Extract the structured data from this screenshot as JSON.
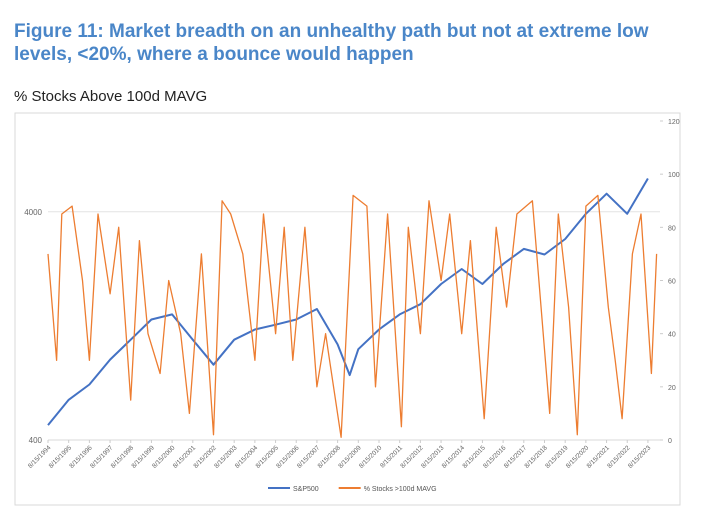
{
  "header": {
    "title": "Figure 11: Market breadth on an unhealthy path but not at extreme low levels, <20%, where a bounce would happen",
    "subtitle": "% Stocks Above 100d MAVG"
  },
  "chart_data": {
    "type": "line",
    "xlim": [
      "8/15/1994",
      "3/15/2024"
    ],
    "xticks": [
      "8/15/1994",
      "8/15/1995",
      "8/15/1996",
      "8/15/1997",
      "8/15/1998",
      "8/15/1999",
      "8/15/2000",
      "8/15/2001",
      "8/15/2002",
      "8/15/2003",
      "8/15/2004",
      "8/15/2005",
      "8/15/2006",
      "8/15/2007",
      "8/15/2008",
      "8/15/2009",
      "8/15/2010",
      "8/15/2011",
      "8/15/2012",
      "8/15/2013",
      "8/15/2014",
      "8/15/2015",
      "8/15/2016",
      "8/15/2017",
      "8/15/2018",
      "8/15/2019",
      "8/15/2020",
      "8/15/2021",
      "8/15/2022",
      "8/15/2023"
    ],
    "ylim": [
      400,
      10000
    ],
    "yscale": "log",
    "yticks": [
      400,
      4000
    ],
    "grid": true,
    "y2lim": [
      0,
      120
    ],
    "y2ticks": [
      0,
      20,
      40,
      60,
      80,
      100,
      120
    ],
    "legend": "bottom",
    "series": [
      {
        "name": "S&P500",
        "color": "#4472c4",
        "axis": "y",
        "x": [
          "8/15/1994",
          "8/15/1995",
          "8/15/1996",
          "8/15/1997",
          "8/15/1998",
          "8/15/1999",
          "8/15/2000",
          "8/15/2001",
          "8/15/2002",
          "8/15/2003",
          "8/15/2004",
          "8/15/2005",
          "8/15/2006",
          "8/15/2007",
          "8/15/2008",
          "3/15/2009",
          "8/15/2009",
          "8/15/2010",
          "8/15/2011",
          "8/15/2012",
          "8/15/2013",
          "8/15/2014",
          "8/15/2015",
          "8/15/2016",
          "8/15/2017",
          "8/15/2018",
          "8/15/2019",
          "8/15/2020",
          "8/15/2021",
          "8/15/2022",
          "8/15/2023"
        ],
        "values": [
          465,
          600,
          700,
          900,
          1100,
          1350,
          1420,
          1100,
          855,
          1100,
          1220,
          1280,
          1350,
          1500,
          1050,
          770,
          1000,
          1220,
          1420,
          1575,
          1930,
          2245,
          1930,
          2360,
          2750,
          2600,
          3040,
          3920,
          4800,
          3920,
          5600
        ]
      },
      {
        "name": "% Stocks >100d MAVG",
        "color": "#ed7d31",
        "axis": "y2",
        "x": [
          "8/15/1994",
          "1/15/1995",
          "4/15/1995",
          "10/15/1995",
          "4/15/1996",
          "8/15/1996",
          "1/15/1997",
          "8/15/1997",
          "1/15/1998",
          "8/15/1998",
          "1/15/1999",
          "6/15/1999",
          "1/15/2000",
          "6/15/2000",
          "1/15/2001",
          "6/15/2001",
          "1/15/2002",
          "8/15/2002",
          "1/15/2003",
          "6/15/2003",
          "1/15/2004",
          "8/15/2004",
          "1/15/2005",
          "8/15/2005",
          "1/15/2006",
          "6/15/2006",
          "1/15/2007",
          "8/15/2007",
          "1/15/2008",
          "10/15/2008",
          "5/15/2009",
          "1/15/2010",
          "6/15/2010",
          "1/15/2011",
          "9/15/2011",
          "1/15/2012",
          "8/15/2012",
          "1/15/2013",
          "8/15/2013",
          "1/15/2014",
          "8/15/2014",
          "1/15/2015",
          "9/15/2015",
          "4/15/2016",
          "10/15/2016",
          "4/15/2017",
          "1/15/2018",
          "11/15/2018",
          "4/15/2019",
          "10/15/2019",
          "3/15/2020",
          "8/15/2020",
          "3/15/2021",
          "9/15/2021",
          "1/15/2022",
          "5/15/2022",
          "11/15/2022",
          "4/15/2023",
          "10/15/2023",
          "1/15/2024"
        ],
        "values": [
          70,
          30,
          85,
          88,
          60,
          30,
          85,
          55,
          80,
          15,
          75,
          40,
          25,
          60,
          40,
          10,
          70,
          2,
          90,
          85,
          70,
          30,
          85,
          40,
          80,
          30,
          80,
          20,
          40,
          1,
          92,
          88,
          20,
          85,
          5,
          80,
          40,
          90,
          60,
          85,
          40,
          75,
          8,
          80,
          50,
          85,
          90,
          10,
          85,
          50,
          2,
          88,
          92,
          50,
          30,
          8,
          70,
          85,
          25,
          70
        ]
      }
    ]
  }
}
